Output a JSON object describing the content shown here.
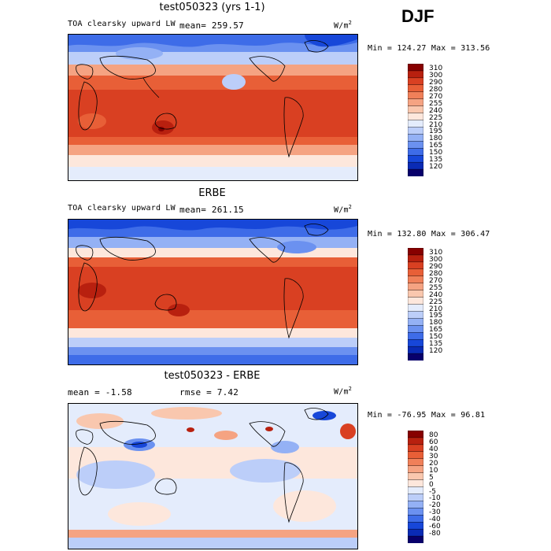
{
  "season": "DJF",
  "unit_base": "W/m",
  "unit_exp": "2",
  "colors": {
    "model": [
      "#08006b",
      "#0a2bb5",
      "#1747d9",
      "#3e6ce8",
      "#6b91f0",
      "#94b1f5",
      "#bccef9",
      "#e4ecfc",
      "#fde7dc",
      "#f9c7ae",
      "#f5a382",
      "#f08059",
      "#e85f37",
      "#d94022",
      "#b8200f",
      "#870000"
    ],
    "diff": [
      "#08006b",
      "#0a2bb5",
      "#1747d9",
      "#3e6ce8",
      "#6b91f0",
      "#94b1f5",
      "#bccef9",
      "#e4ecfc",
      "#fde7dc",
      "#f9c7ae",
      "#f5a382",
      "#f08059",
      "#e85f37",
      "#d94022",
      "#b8200f",
      "#870000"
    ]
  },
  "chart_data": [
    {
      "type": "heatmap",
      "title": "test050323 (yrs 1-1)",
      "field": "TOA clearsky upward LW",
      "mean_label": "mean= 259.57",
      "mean": 259.57,
      "min": 124.27,
      "max": 313.56,
      "minmax_label": "Min = 124.27 Max = 313.56",
      "levels": [
        "310",
        "300",
        "290",
        "280",
        "270",
        "255",
        "240",
        "225",
        "210",
        "195",
        "180",
        "165",
        "150",
        "135",
        "120"
      ]
    },
    {
      "type": "heatmap",
      "title": "ERBE",
      "field": "TOA clearsky upward LW",
      "mean_label": "mean= 261.15",
      "mean": 261.15,
      "min": 132.8,
      "max": 306.47,
      "minmax_label": "Min = 132.80 Max = 306.47",
      "levels": [
        "310",
        "300",
        "290",
        "280",
        "270",
        "255",
        "240",
        "225",
        "210",
        "195",
        "180",
        "165",
        "150",
        "135",
        "120"
      ]
    },
    {
      "type": "heatmap",
      "title": "test050323 - ERBE",
      "mean_label": "mean =  -1.58",
      "rmse_label": "rmse =   7.42",
      "mean": -1.58,
      "rmse": 7.42,
      "min": -76.95,
      "max": 96.81,
      "minmax_label": "Min = -76.95 Max =  96.81",
      "levels": [
        "80",
        "60",
        "40",
        "30",
        "20",
        "10",
        "5",
        "0",
        "-5",
        "-10",
        "-20",
        "-30",
        "-40",
        "-60",
        "-80"
      ]
    }
  ]
}
